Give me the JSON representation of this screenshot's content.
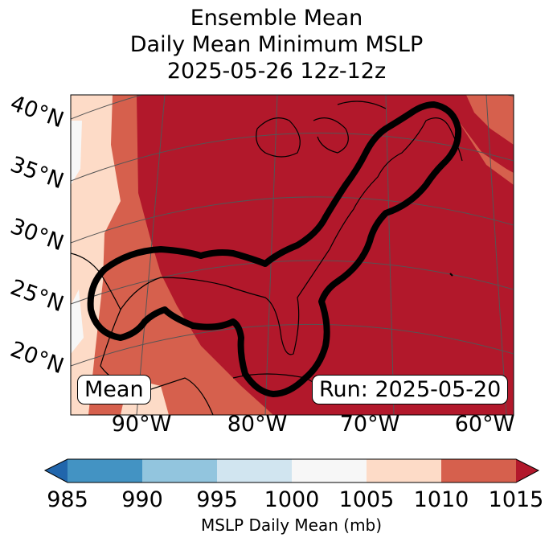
{
  "title": {
    "line1": "Ensemble Mean",
    "line2": "Daily Mean Minimum MSLP",
    "line3": "2025-05-26 12z-12z"
  },
  "lat_labels": [
    "40°N",
    "35°N",
    "30°N",
    "25°N",
    "20°N"
  ],
  "lon_labels": [
    "90°W",
    "80°W",
    "70°W",
    "60°W"
  ],
  "mean_box": "Mean",
  "run_box": "Run: 2025-05-20",
  "colorbar": {
    "label": "MSLP Daily Mean (mb)",
    "ticks": [
      "985",
      "990",
      "995",
      "1000",
      "1005",
      "1010",
      "1015"
    ],
    "colors": [
      "#2166ac",
      "#4393c3",
      "#92c5de",
      "#d1e5f0",
      "#f7f7f7",
      "#fddbc7",
      "#d6604d",
      "#b2182b"
    ]
  },
  "colors": {
    "land_outline": "#000000",
    "contour": "#000000",
    "gridline": "#555555"
  }
}
